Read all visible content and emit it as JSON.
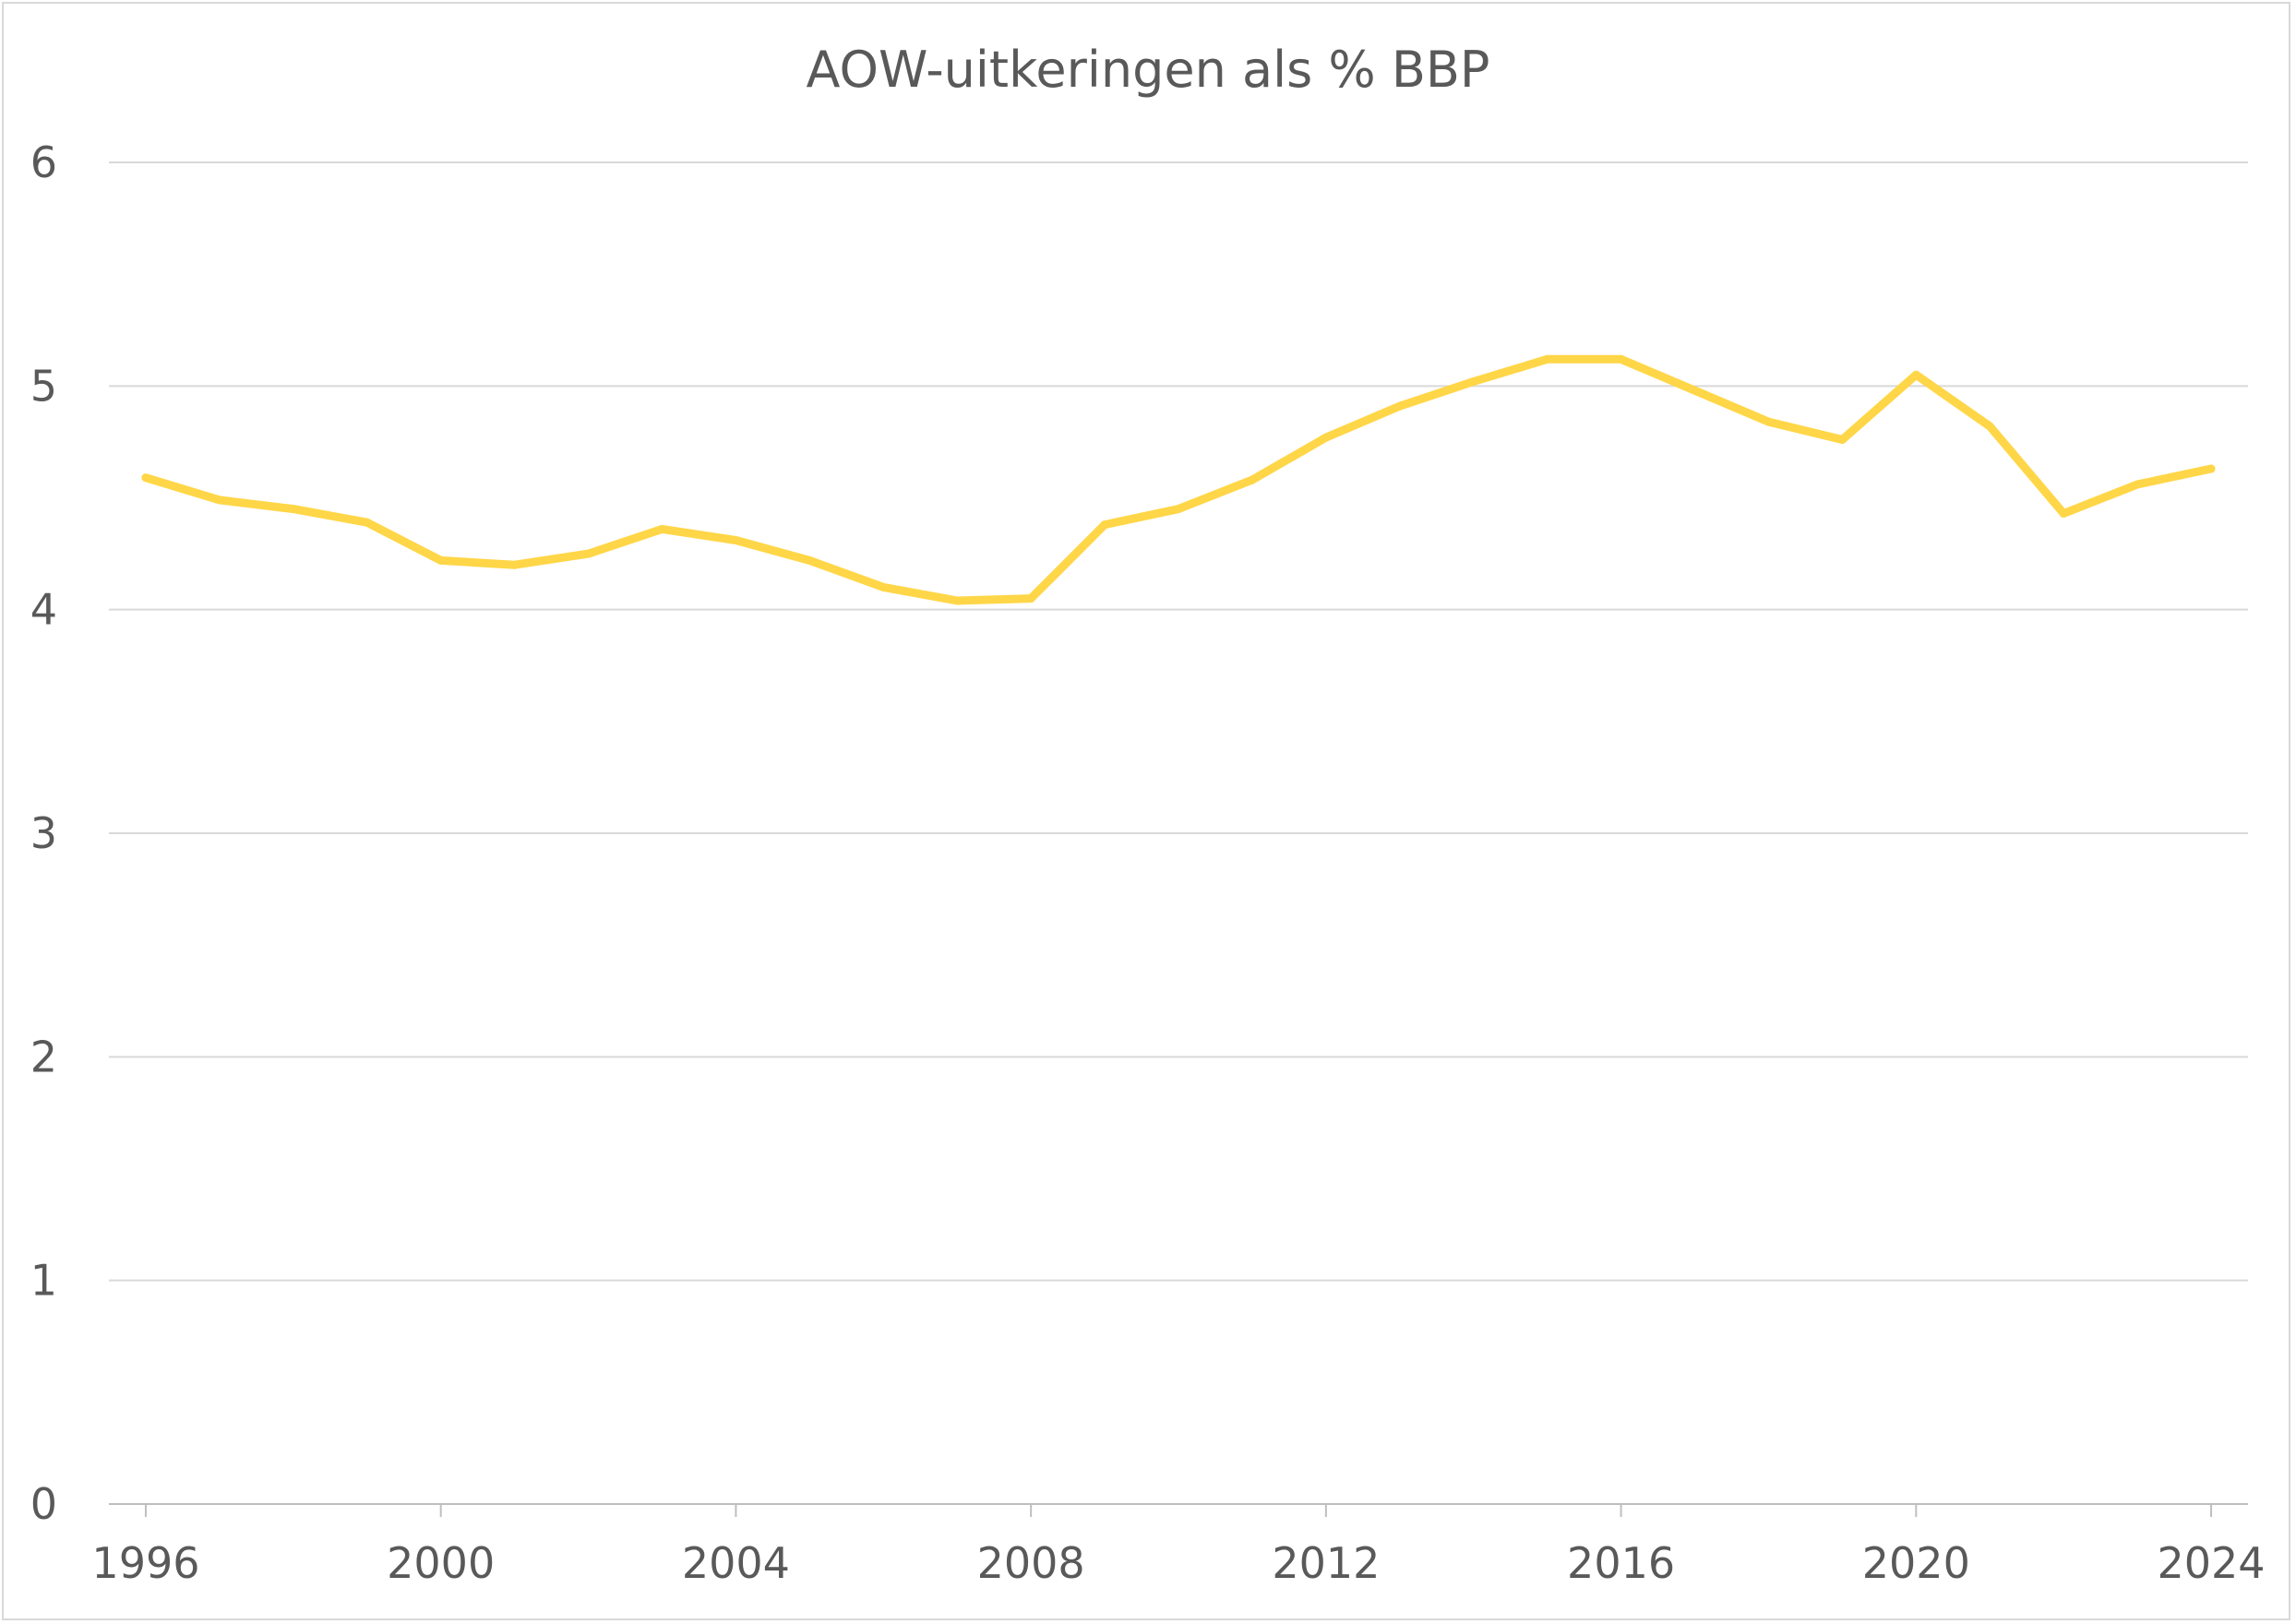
{
  "chart_data": {
    "type": "line",
    "title": "AOW-uitkeringen als % BBP",
    "xlabel": "",
    "ylabel": "",
    "xlim": [
      1995.5,
      2024.5
    ],
    "ylim": [
      0,
      6
    ],
    "yticks": [
      "0",
      "1",
      "2",
      "3",
      "4",
      "5",
      "6"
    ],
    "xticks": [
      {
        "value": 1996,
        "label": "1996"
      },
      {
        "value": 2000,
        "label": "2000"
      },
      {
        "value": 2004,
        "label": "2004"
      },
      {
        "value": 2008,
        "label": "2008"
      },
      {
        "value": 2012,
        "label": "2012"
      },
      {
        "value": 2016,
        "label": "2016"
      },
      {
        "value": 2020,
        "label": "2020"
      },
      {
        "value": 2024,
        "label": "2024"
      }
    ],
    "grid": true,
    "series": [
      {
        "name": "AOW-uitkeringen als % BBP",
        "color": "#FFD647",
        "x": [
          1996,
          1997,
          1998,
          1999,
          2000,
          2001,
          2002,
          2003,
          2004,
          2005,
          2006,
          2007,
          2008,
          2009,
          2010,
          2011,
          2012,
          2013,
          2014,
          2015,
          2016,
          2017,
          2018,
          2019,
          2020,
          2021,
          2022,
          2023,
          2024
        ],
        "values": [
          4.59,
          4.49,
          4.45,
          4.39,
          4.22,
          4.2,
          4.25,
          4.36,
          4.31,
          4.22,
          4.1,
          4.04,
          4.05,
          4.38,
          4.45,
          4.58,
          4.77,
          4.91,
          5.02,
          5.12,
          5.12,
          4.98,
          4.84,
          4.76,
          5.05,
          4.82,
          4.43,
          4.56,
          4.63
        ]
      }
    ],
    "colors": {
      "gridline": "#d9d9d9",
      "axis": "#bfbfbf",
      "text": "#595959"
    }
  }
}
